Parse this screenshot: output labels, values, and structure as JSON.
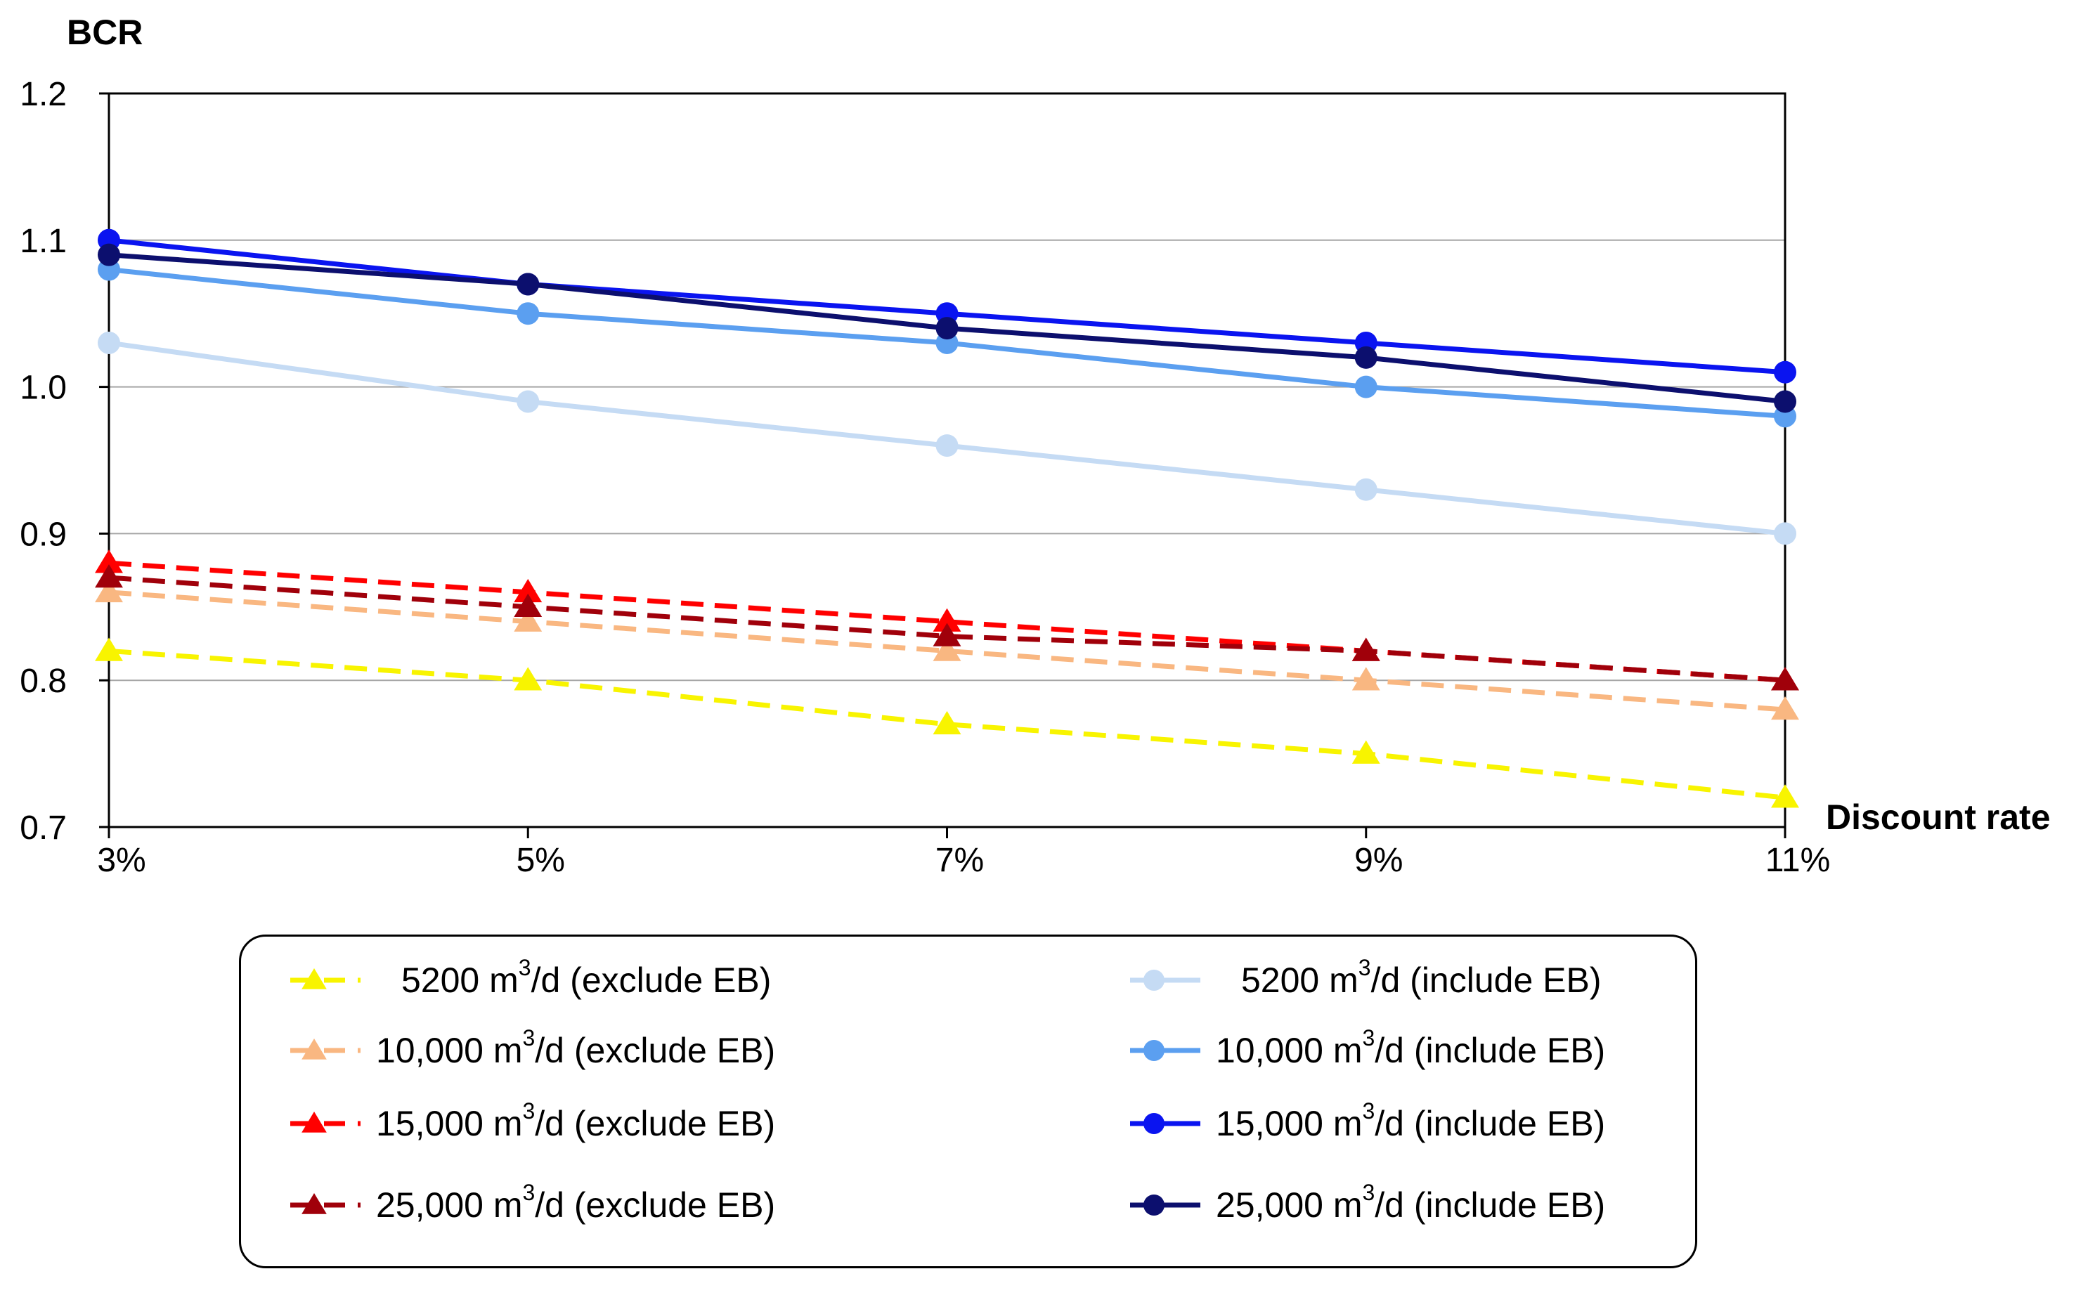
{
  "chart_data": {
    "type": "line",
    "title": "",
    "ylabel": "BCR",
    "xlabel": "Discount rate",
    "categories": [
      "3%",
      "5%",
      "7%",
      "9%",
      "11%"
    ],
    "ylim": [
      0.7,
      1.2
    ],
    "yticks": [
      "0.7",
      "0.8",
      "0.9",
      "1.0",
      "1.1",
      "1.2"
    ],
    "gridlines": [
      0.8,
      0.9,
      1.0,
      1.1
    ],
    "series": [
      {
        "name_pre": "5200 m",
        "sup": "3",
        "name_post": "/d (exclude EB)",
        "color": "#f8f400",
        "marker": "triangle",
        "dash": true,
        "values": [
          0.82,
          0.8,
          0.77,
          0.75,
          0.72
        ]
      },
      {
        "name_pre": "10,000 m",
        "sup": "3",
        "name_post": "/d (exclude EB)",
        "color": "#f9b781",
        "marker": "triangle",
        "dash": true,
        "values": [
          0.86,
          0.84,
          0.82,
          0.8,
          0.78
        ]
      },
      {
        "name_pre": "15,000 m",
        "sup": "3",
        "name_post": "/d (exclude EB)",
        "color": "#ff0000",
        "marker": "triangle",
        "dash": true,
        "values": [
          0.88,
          0.86,
          0.84,
          0.82,
          0.8
        ]
      },
      {
        "name_pre": "25,000 m",
        "sup": "3",
        "name_post": "/d (exclude EB)",
        "color": "#a0000a",
        "marker": "triangle",
        "dash": true,
        "values": [
          0.87,
          0.85,
          0.83,
          0.82,
          0.8
        ]
      },
      {
        "name_pre": "5200 m",
        "sup": "3",
        "name_post": "/d (include EB)",
        "color": "#c5dbf4",
        "marker": "circle",
        "dash": false,
        "values": [
          1.03,
          0.99,
          0.96,
          0.93,
          0.9
        ]
      },
      {
        "name_pre": "10,000 m",
        "sup": "3",
        "name_post": "/d (include EB)",
        "color": "#5b9ff0",
        "marker": "circle",
        "dash": false,
        "values": [
          1.08,
          1.05,
          1.03,
          1.0,
          0.98
        ]
      },
      {
        "name_pre": "15,000 m",
        "sup": "3",
        "name_post": "/d (include EB)",
        "color": "#0a14f0",
        "marker": "circle",
        "dash": false,
        "values": [
          1.1,
          1.07,
          1.05,
          1.03,
          1.01
        ]
      },
      {
        "name_pre": "25,000 m",
        "sup": "3",
        "name_post": "/d (include EB)",
        "color": "#0c0f6e",
        "marker": "circle",
        "dash": false,
        "values": [
          1.09,
          1.07,
          1.04,
          1.02,
          0.99
        ]
      }
    ],
    "legend_position": "bottom"
  }
}
